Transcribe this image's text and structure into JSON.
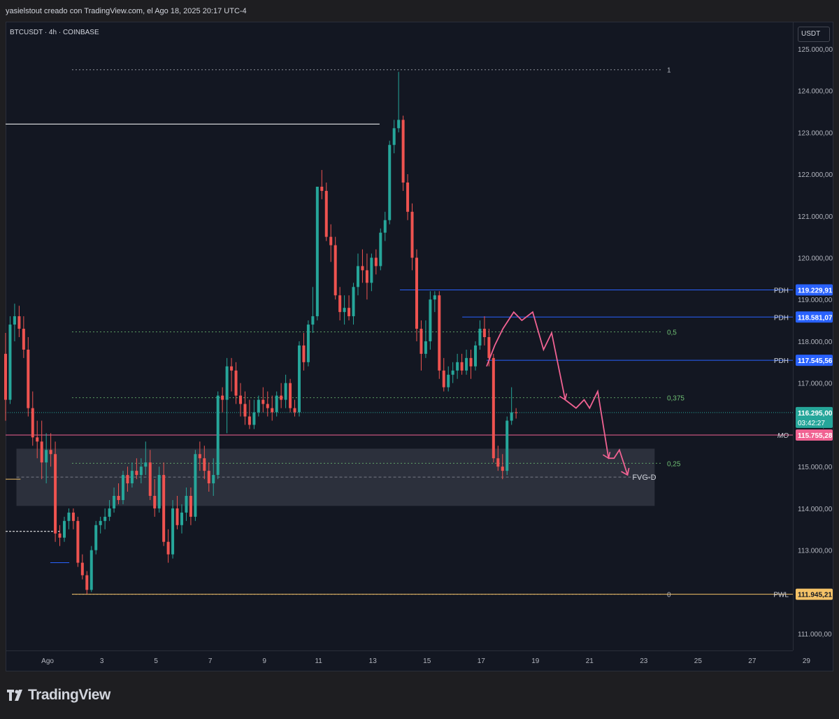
{
  "caption": "yasielstout creado con TradingView.com, el Ago 18, 2025 20:17 UTC-4",
  "symbol": "BTCUSDT · 4h · COINBASE",
  "currency": "USDT",
  "brand": "TradingView",
  "colors": {
    "up": "#26a69a",
    "down": "#ef5350",
    "pdh": "#2962ff",
    "mo": "#f06292",
    "pwl": "#f4c267",
    "fib": "#6fbf73",
    "arrow": "#f06292"
  },
  "chart_data": {
    "type": "candlestick",
    "y_ticks": [
      "125.000,00",
      "124.000,00",
      "123.000,00",
      "122.000,00",
      "121.000,00",
      "120.000,00",
      "119.000,00",
      "118.000,00",
      "117.000,00",
      "116.000,00",
      "115.000,00",
      "114.000,00",
      "113.000,00",
      "112.000,00",
      "111.000,00"
    ],
    "y_tick_values": [
      125000,
      124000,
      123000,
      122000,
      121000,
      120000,
      119000,
      118000,
      117000,
      116000,
      115000,
      114000,
      113000,
      112000,
      111000
    ],
    "x_ticks": [
      "Ago",
      "3",
      "5",
      "7",
      "9",
      "11",
      "13",
      "15",
      "17",
      "19",
      "21",
      "23",
      "25",
      "27",
      "29"
    ],
    "x_tick_days": [
      1,
      3,
      5,
      7,
      9,
      11,
      13,
      15,
      17,
      19,
      21,
      23,
      25,
      27,
      29
    ],
    "ylim": [
      110600,
      125650
    ],
    "xlim": [
      -0.55,
      28.5
    ],
    "price_levels": [
      {
        "label": "PDH",
        "value": 119229.91,
        "price_text": "119.229,91",
        "color": "#2962ff",
        "from_day": 14.0
      },
      {
        "label": "PDH",
        "value": 118581.07,
        "price_text": "118.581,07",
        "color": "#2962ff",
        "from_day": 16.3
      },
      {
        "label": "PDH",
        "value": 117545.56,
        "price_text": "117.545,56",
        "color": "#2962ff",
        "from_day": 17.2
      },
      {
        "label": "MO",
        "value": 115755.28,
        "price_text": "115.755,28",
        "color": "#f06292",
        "from_day": -0.55
      },
      {
        "label": "PWL",
        "value": 111945.21,
        "price_text": "111.945,21",
        "color": "#f4c267",
        "from_day": 1.9
      }
    ],
    "current_price": {
      "value": 116295.0,
      "price_text": "116.295,00",
      "countdown": "03:42:27",
      "color": "#26a69a"
    },
    "fib_levels": [
      {
        "label": "1",
        "value": 124500
      },
      {
        "label": "0,5",
        "value": 118225
      },
      {
        "label": "0,375",
        "value": 116650
      },
      {
        "label": "0,25",
        "value": 115080
      },
      {
        "label": "0",
        "value": 111945
      }
    ],
    "fib_range": [
      1.9,
      23.7
    ],
    "fvg_zone": {
      "label": "FVG-D",
      "top": 115430,
      "bottom": 114060,
      "mid": 114750,
      "from_day": -0.15,
      "to_day": 23.4
    },
    "candles": [
      {
        "o": 117700,
        "h": 118200,
        "l": 116100,
        "c": 116600
      },
      {
        "o": 116600,
        "h": 118600,
        "l": 116500,
        "c": 118400
      },
      {
        "o": 118400,
        "h": 118900,
        "l": 118000,
        "c": 118600
      },
      {
        "o": 118600,
        "h": 118850,
        "l": 118100,
        "c": 118300
      },
      {
        "o": 118300,
        "h": 118600,
        "l": 117600,
        "c": 117800
      },
      {
        "o": 117800,
        "h": 118100,
        "l": 116200,
        "c": 116400
      },
      {
        "o": 116400,
        "h": 116800,
        "l": 115500,
        "c": 115700
      },
      {
        "o": 115700,
        "h": 116100,
        "l": 115200,
        "c": 115600
      },
      {
        "o": 115600,
        "h": 116100,
        "l": 114700,
        "c": 115100
      },
      {
        "o": 115100,
        "h": 115800,
        "l": 114600,
        "c": 115400
      },
      {
        "o": 115400,
        "h": 115800,
        "l": 115000,
        "c": 115300
      },
      {
        "o": 115300,
        "h": 115600,
        "l": 113200,
        "c": 113400
      },
      {
        "o": 113400,
        "h": 113600,
        "l": 113100,
        "c": 113300
      },
      {
        "o": 113300,
        "h": 113800,
        "l": 113200,
        "c": 113700
      },
      {
        "o": 113700,
        "h": 114000,
        "l": 113500,
        "c": 113900
      },
      {
        "o": 113900,
        "h": 114000,
        "l": 113500,
        "c": 113700
      },
      {
        "o": 113700,
        "h": 113800,
        "l": 112600,
        "c": 112700
      },
      {
        "o": 112700,
        "h": 112900,
        "l": 112300,
        "c": 112400
      },
      {
        "o": 112400,
        "h": 112500,
        "l": 111950,
        "c": 112050
      },
      {
        "o": 112050,
        "h": 113100,
        "l": 112000,
        "c": 113000
      },
      {
        "o": 113000,
        "h": 113700,
        "l": 112900,
        "c": 113600
      },
      {
        "o": 113600,
        "h": 113800,
        "l": 113400,
        "c": 113700
      },
      {
        "o": 113700,
        "h": 114000,
        "l": 113500,
        "c": 113800
      },
      {
        "o": 113800,
        "h": 114200,
        "l": 113700,
        "c": 114000
      },
      {
        "o": 114000,
        "h": 114500,
        "l": 113900,
        "c": 114300
      },
      {
        "o": 114300,
        "h": 114600,
        "l": 114100,
        "c": 114200
      },
      {
        "o": 114200,
        "h": 114900,
        "l": 114100,
        "c": 114800
      },
      {
        "o": 114800,
        "h": 115000,
        "l": 114400,
        "c": 114600
      },
      {
        "o": 114600,
        "h": 115100,
        "l": 114500,
        "c": 114900
      },
      {
        "o": 114900,
        "h": 115200,
        "l": 114700,
        "c": 114800
      },
      {
        "o": 114800,
        "h": 115200,
        "l": 114600,
        "c": 115000
      },
      {
        "o": 115000,
        "h": 115600,
        "l": 114800,
        "c": 115100
      },
      {
        "o": 115100,
        "h": 115400,
        "l": 114200,
        "c": 114300
      },
      {
        "o": 114300,
        "h": 114700,
        "l": 113800,
        "c": 114000
      },
      {
        "o": 114000,
        "h": 115000,
        "l": 113900,
        "c": 114800
      },
      {
        "o": 114800,
        "h": 115100,
        "l": 113100,
        "c": 113200
      },
      {
        "o": 113200,
        "h": 113500,
        "l": 112700,
        "c": 112900
      },
      {
        "o": 112900,
        "h": 114200,
        "l": 112800,
        "c": 114000
      },
      {
        "o": 114000,
        "h": 114300,
        "l": 113500,
        "c": 113600
      },
      {
        "o": 113600,
        "h": 114100,
        "l": 113400,
        "c": 113900
      },
      {
        "o": 113900,
        "h": 114500,
        "l": 113700,
        "c": 114300
      },
      {
        "o": 114300,
        "h": 114500,
        "l": 113600,
        "c": 113800
      },
      {
        "o": 113800,
        "h": 115400,
        "l": 113700,
        "c": 115300
      },
      {
        "o": 115300,
        "h": 115600,
        "l": 114900,
        "c": 115200
      },
      {
        "o": 115200,
        "h": 115500,
        "l": 114700,
        "c": 114900
      },
      {
        "o": 114900,
        "h": 115100,
        "l": 114400,
        "c": 114600
      },
      {
        "o": 114600,
        "h": 115200,
        "l": 114300,
        "c": 114800
      },
      {
        "o": 114800,
        "h": 116800,
        "l": 114700,
        "c": 116700
      },
      {
        "o": 116700,
        "h": 116900,
        "l": 116300,
        "c": 116600
      },
      {
        "o": 116600,
        "h": 117600,
        "l": 115800,
        "c": 117400
      },
      {
        "o": 117400,
        "h": 117600,
        "l": 116800,
        "c": 117300
      },
      {
        "o": 117300,
        "h": 117500,
        "l": 116500,
        "c": 116700
      },
      {
        "o": 116700,
        "h": 117000,
        "l": 116200,
        "c": 116500
      },
      {
        "o": 116500,
        "h": 116800,
        "l": 116000,
        "c": 116200
      },
      {
        "o": 116200,
        "h": 116600,
        "l": 115900,
        "c": 116000
      },
      {
        "o": 116000,
        "h": 116600,
        "l": 115900,
        "c": 116300
      },
      {
        "o": 116300,
        "h": 116700,
        "l": 116200,
        "c": 116600
      },
      {
        "o": 116600,
        "h": 116900,
        "l": 116300,
        "c": 116500
      },
      {
        "o": 116500,
        "h": 116800,
        "l": 116200,
        "c": 116400
      },
      {
        "o": 116400,
        "h": 116700,
        "l": 116100,
        "c": 116300
      },
      {
        "o": 116300,
        "h": 116800,
        "l": 116200,
        "c": 116700
      },
      {
        "o": 116700,
        "h": 117000,
        "l": 116400,
        "c": 116600
      },
      {
        "o": 116600,
        "h": 117200,
        "l": 116400,
        "c": 117000
      },
      {
        "o": 117000,
        "h": 117100,
        "l": 116300,
        "c": 116400
      },
      {
        "o": 116400,
        "h": 116600,
        "l": 116200,
        "c": 116300
      },
      {
        "o": 116300,
        "h": 118000,
        "l": 116200,
        "c": 117900
      },
      {
        "o": 117900,
        "h": 118200,
        "l": 117300,
        "c": 117500
      },
      {
        "o": 117500,
        "h": 118500,
        "l": 117400,
        "c": 118400
      },
      {
        "o": 118400,
        "h": 119300,
        "l": 118200,
        "c": 118600
      },
      {
        "o": 118600,
        "h": 121700,
        "l": 118500,
        "c": 121700
      },
      {
        "o": 121700,
        "h": 122100,
        "l": 121400,
        "c": 121600
      },
      {
        "o": 121600,
        "h": 121800,
        "l": 120400,
        "c": 120500
      },
      {
        "o": 120500,
        "h": 120800,
        "l": 119900,
        "c": 120300
      },
      {
        "o": 120300,
        "h": 120500,
        "l": 119000,
        "c": 119100
      },
      {
        "o": 119100,
        "h": 119300,
        "l": 118500,
        "c": 118700
      },
      {
        "o": 118700,
        "h": 119100,
        "l": 118400,
        "c": 118800
      },
      {
        "o": 118800,
        "h": 119100,
        "l": 118500,
        "c": 118600
      },
      {
        "o": 118600,
        "h": 119400,
        "l": 118400,
        "c": 119300
      },
      {
        "o": 119300,
        "h": 120100,
        "l": 119100,
        "c": 119800
      },
      {
        "o": 119800,
        "h": 120200,
        "l": 119400,
        "c": 119700
      },
      {
        "o": 119700,
        "h": 120100,
        "l": 119000,
        "c": 119400
      },
      {
        "o": 119400,
        "h": 120100,
        "l": 119200,
        "c": 120000
      },
      {
        "o": 120000,
        "h": 120200,
        "l": 119600,
        "c": 119800
      },
      {
        "o": 119800,
        "h": 120700,
        "l": 119700,
        "c": 120600
      },
      {
        "o": 120600,
        "h": 121100,
        "l": 120400,
        "c": 120900
      },
      {
        "o": 120900,
        "h": 122800,
        "l": 120800,
        "c": 122700
      },
      {
        "o": 122700,
        "h": 123300,
        "l": 122500,
        "c": 123100
      },
      {
        "o": 123100,
        "h": 124450,
        "l": 123000,
        "c": 123300
      },
      {
        "o": 123300,
        "h": 123400,
        "l": 121600,
        "c": 121800
      },
      {
        "o": 121800,
        "h": 122000,
        "l": 120900,
        "c": 121100
      },
      {
        "o": 121100,
        "h": 121300,
        "l": 119700,
        "c": 120000
      },
      {
        "o": 120000,
        "h": 120200,
        "l": 118000,
        "c": 118300
      },
      {
        "o": 118300,
        "h": 118500,
        "l": 117300,
        "c": 117700
      },
      {
        "o": 117700,
        "h": 118500,
        "l": 117600,
        "c": 118000
      },
      {
        "o": 118000,
        "h": 119200,
        "l": 117800,
        "c": 119000
      },
      {
        "o": 119000,
        "h": 119200,
        "l": 118700,
        "c": 119100
      },
      {
        "o": 119100,
        "h": 119200,
        "l": 117100,
        "c": 117300
      },
      {
        "o": 117300,
        "h": 117600,
        "l": 116800,
        "c": 116900
      },
      {
        "o": 116900,
        "h": 117400,
        "l": 116800,
        "c": 117200
      },
      {
        "o": 117200,
        "h": 117500,
        "l": 117000,
        "c": 117300
      },
      {
        "o": 117300,
        "h": 117700,
        "l": 117100,
        "c": 117500
      },
      {
        "o": 117500,
        "h": 117700,
        "l": 117200,
        "c": 117300
      },
      {
        "o": 117300,
        "h": 117800,
        "l": 117200,
        "c": 117600
      },
      {
        "o": 117600,
        "h": 117800,
        "l": 117100,
        "c": 117400
      },
      {
        "o": 117400,
        "h": 118000,
        "l": 117300,
        "c": 117900
      },
      {
        "o": 117900,
        "h": 118500,
        "l": 117800,
        "c": 118300
      },
      {
        "o": 118300,
        "h": 118600,
        "l": 117900,
        "c": 118100
      },
      {
        "o": 118100,
        "h": 118300,
        "l": 117400,
        "c": 117600
      },
      {
        "o": 117600,
        "h": 117700,
        "l": 115100,
        "c": 115200
      },
      {
        "o": 115200,
        "h": 115500,
        "l": 114900,
        "c": 115000
      },
      {
        "o": 115000,
        "h": 115300,
        "l": 114700,
        "c": 114900
      },
      {
        "o": 114900,
        "h": 116200,
        "l": 114800,
        "c": 116100
      },
      {
        "o": 116100,
        "h": 116900,
        "l": 116000,
        "c": 116300
      },
      {
        "o": 116300,
        "h": 116400,
        "l": 116150,
        "c": 116295
      }
    ],
    "candle_day_start": -0.55,
    "candle_day_step": 0.1667,
    "projection_path": [
      [
        17.2,
        117400
      ],
      [
        17.5,
        117900
      ],
      [
        17.8,
        118300
      ],
      [
        18.2,
        118700
      ],
      [
        18.5,
        118500
      ],
      [
        18.9,
        118700
      ],
      [
        19.3,
        117800
      ],
      [
        19.6,
        118200
      ],
      [
        20.1,
        116600
      ],
      [
        20.5,
        116400
      ],
      [
        20.8,
        116600
      ],
      [
        21.0,
        116400
      ],
      [
        21.3,
        116800
      ],
      [
        21.7,
        115200
      ],
      [
        21.9,
        115200
      ],
      [
        22.1,
        115400
      ],
      [
        22.4,
        114800
      ]
    ]
  }
}
